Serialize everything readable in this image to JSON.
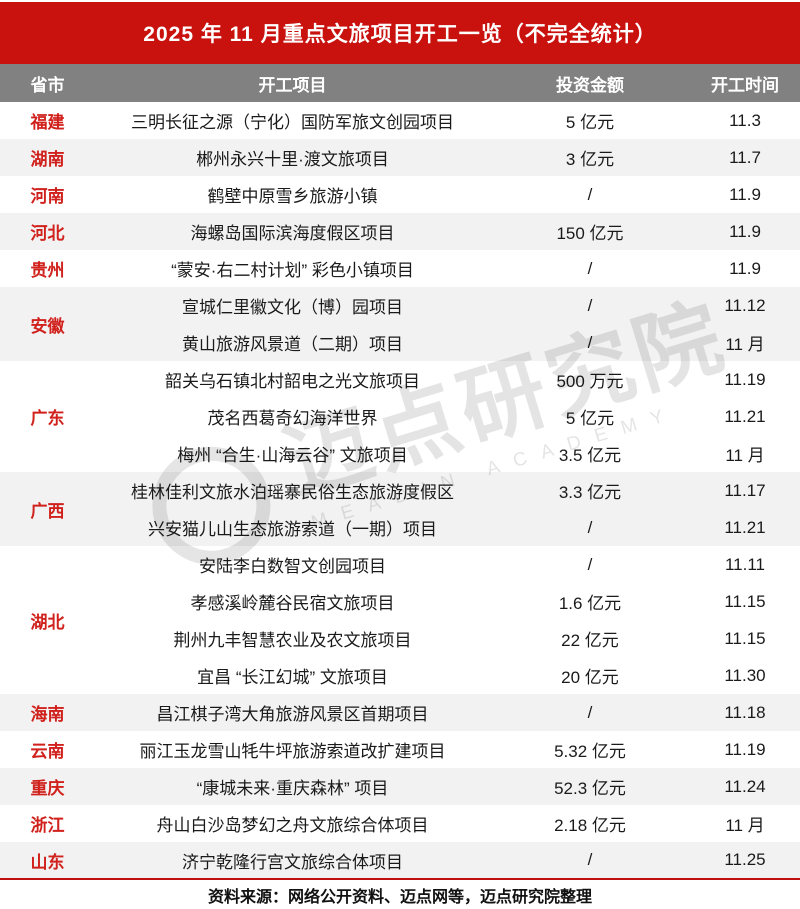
{
  "title": "2025 年 11 月重点文旅项目开工一览（不完全统计）",
  "columns": [
    "省市",
    "开工项目",
    "投资金额",
    "开工时间"
  ],
  "groups": [
    {
      "province": "福建",
      "projects": [
        {
          "name": "三明长征之源（宁化）国防军旅文创园项目",
          "investment": "5 亿元",
          "date": "11.3"
        }
      ]
    },
    {
      "province": "湖南",
      "projects": [
        {
          "name": "郴州永兴十里·渡文旅项目",
          "investment": "3 亿元",
          "date": "11.7"
        }
      ]
    },
    {
      "province": "河南",
      "projects": [
        {
          "name": "鹤壁中原雪乡旅游小镇",
          "investment": "/",
          "date": "11.9"
        }
      ]
    },
    {
      "province": "河北",
      "projects": [
        {
          "name": "海螺岛国际滨海度假区项目",
          "investment": "150 亿元",
          "date": "11.9"
        }
      ]
    },
    {
      "province": "贵州",
      "projects": [
        {
          "name": "“蒙安·右二村计划” 彩色小镇项目",
          "investment": "/",
          "date": "11.9"
        }
      ]
    },
    {
      "province": "安徽",
      "projects": [
        {
          "name": "宣城仁里徽文化（博）园项目",
          "investment": "/",
          "date": "11.12"
        },
        {
          "name": "黄山旅游风景道（二期）项目",
          "investment": "/",
          "date": "11 月"
        }
      ]
    },
    {
      "province": "广东",
      "projects": [
        {
          "name": "韶关乌石镇北村韶电之光文旅项目",
          "investment": "500 万元",
          "date": "11.19"
        },
        {
          "name": "茂名西葛奇幻海洋世界",
          "investment": "5 亿元",
          "date": "11.21"
        },
        {
          "name": "梅州 “合生·山海云谷” 文旅项目",
          "investment": "3.5 亿元",
          "date": "11 月"
        }
      ]
    },
    {
      "province": "广西",
      "projects": [
        {
          "name": "桂林佳利文旅水泊瑶寨民俗生态旅游度假区",
          "investment": "3.3 亿元",
          "date": "11.17"
        },
        {
          "name": "兴安猫儿山生态旅游索道（一期）项目",
          "investment": "/",
          "date": "11.21"
        }
      ]
    },
    {
      "province": "湖北",
      "projects": [
        {
          "name": "安陆李白数智文创园项目",
          "investment": "/",
          "date": "11.11"
        },
        {
          "name": "孝感溪岭麓谷民宿文旅项目",
          "investment": "1.6 亿元",
          "date": "11.15"
        },
        {
          "name": "荆州九丰智慧农业及农文旅项目",
          "investment": "22 亿元",
          "date": "11.15"
        },
        {
          "name": "宜昌 “长江幻城” 文旅项目",
          "investment": "20 亿元",
          "date": "11.30"
        }
      ]
    },
    {
      "province": "海南",
      "projects": [
        {
          "name": "昌江棋子湾大角旅游风景区首期项目",
          "investment": "/",
          "date": "11.18"
        }
      ]
    },
    {
      "province": "云南",
      "projects": [
        {
          "name": "丽江玉龙雪山牦牛坪旅游索道改扩建项目",
          "investment": "5.32 亿元",
          "date": "11.19"
        }
      ]
    },
    {
      "province": "重庆",
      "projects": [
        {
          "name": "“康城未来·重庆森林” 项目",
          "investment": "52.3 亿元",
          "date": "11.24"
        }
      ]
    },
    {
      "province": "浙江",
      "projects": [
        {
          "name": "舟山白沙岛梦幻之舟文旅综合体项目",
          "investment": "2.18 亿元",
          "date": "11 月"
        }
      ]
    },
    {
      "province": "山东",
      "projects": [
        {
          "name": "济宁乾隆行宫文旅综合体项目",
          "investment": "/",
          "date": "11.25"
        }
      ]
    }
  ],
  "footer": "资料来源：网络公开资料、迈点网等，迈点研究院整理",
  "watermark": {
    "text": "迈点研究院",
    "subtext": "MEADIN ACADEMY"
  },
  "colors": {
    "banner": "#c9110e",
    "headerBg": "#818181",
    "altRow": "#f2f2f2",
    "provinceText": "#d0211c",
    "lineRed": "#c0100e"
  }
}
